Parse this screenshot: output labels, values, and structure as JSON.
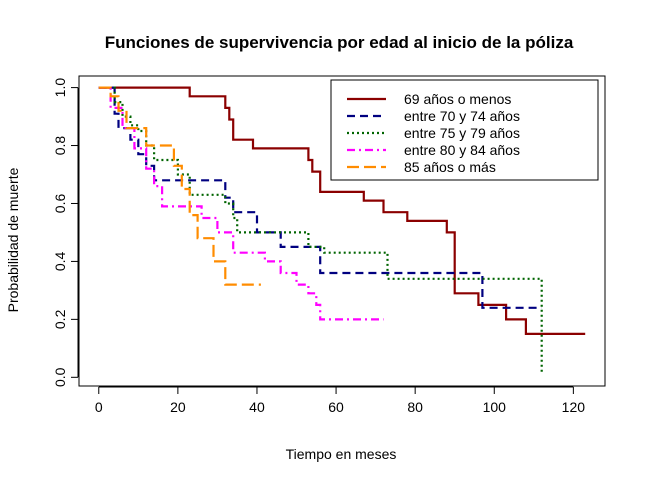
{
  "chart_data": {
    "type": "line",
    "step": true,
    "title": "Funciones de supervivencia por edad al inicio de la póliza",
    "xlabel": "Tiempo en meses",
    "ylabel": "Probabilidad de muerte",
    "xlim": [
      -5,
      128
    ],
    "ylim": [
      -0.03,
      1.04
    ],
    "xticks": [
      0,
      20,
      40,
      60,
      80,
      100,
      120
    ],
    "yticks": [
      0.0,
      0.2,
      0.4,
      0.6,
      0.8,
      1.0
    ],
    "ytick_labels": [
      "0.0",
      "0.2",
      "0.4",
      "0.6",
      "0.8",
      "1.0"
    ],
    "legend_position": "top-right",
    "series": [
      {
        "name": "69 años o menos",
        "color": "#8B0000",
        "dash": "solid",
        "x": [
          0,
          23,
          32,
          33,
          34,
          39,
          53,
          54,
          56,
          67,
          72,
          78,
          88,
          90,
          96,
          103,
          108,
          123
        ],
        "y": [
          1.0,
          0.97,
          0.93,
          0.89,
          0.82,
          0.79,
          0.75,
          0.71,
          0.64,
          0.61,
          0.57,
          0.54,
          0.5,
          0.29,
          0.25,
          0.2,
          0.15,
          0.15
        ]
      },
      {
        "name": "entre 70 y 74 años",
        "color": "#000080",
        "dash": "dashed",
        "x": [
          0,
          4,
          5,
          8,
          10,
          12,
          14,
          18,
          23,
          32,
          34,
          40,
          46,
          56,
          97,
          112
        ],
        "y": [
          1.0,
          0.91,
          0.86,
          0.82,
          0.77,
          0.73,
          0.68,
          0.68,
          0.68,
          0.62,
          0.57,
          0.5,
          0.45,
          0.36,
          0.24,
          0.24
        ]
      },
      {
        "name": "entre 75 y 79 años",
        "color": "#006400",
        "dash": "dotted",
        "x": [
          0,
          4,
          6,
          8,
          10,
          12,
          14,
          20,
          23,
          32,
          34,
          35,
          40,
          53,
          57,
          73,
          112,
          112
        ],
        "y": [
          1.0,
          0.95,
          0.9,
          0.87,
          0.85,
          0.8,
          0.75,
          0.7,
          0.63,
          0.6,
          0.55,
          0.5,
          0.5,
          0.45,
          0.43,
          0.34,
          0.34,
          0.01
        ]
      },
      {
        "name": "entre 80 y 84 años",
        "color": "#FF00FF",
        "dash": "dashdot",
        "x": [
          0,
          3,
          6,
          9,
          12,
          14,
          16,
          20,
          23,
          26,
          30,
          34,
          42,
          46,
          50,
          53,
          55,
          56,
          72
        ],
        "y": [
          1.0,
          0.93,
          0.86,
          0.79,
          0.72,
          0.66,
          0.59,
          0.59,
          0.59,
          0.55,
          0.5,
          0.43,
          0.4,
          0.36,
          0.32,
          0.29,
          0.25,
          0.2,
          0.2
        ]
      },
      {
        "name": "85 años o más",
        "color": "#FF8C00",
        "dash": "longdash",
        "x": [
          0,
          3,
          5,
          7,
          12,
          19,
          21,
          23,
          25,
          29,
          32,
          41
        ],
        "y": [
          1.0,
          0.97,
          0.92,
          0.86,
          0.8,
          0.73,
          0.65,
          0.56,
          0.48,
          0.4,
          0.32,
          0.32
        ]
      }
    ]
  }
}
